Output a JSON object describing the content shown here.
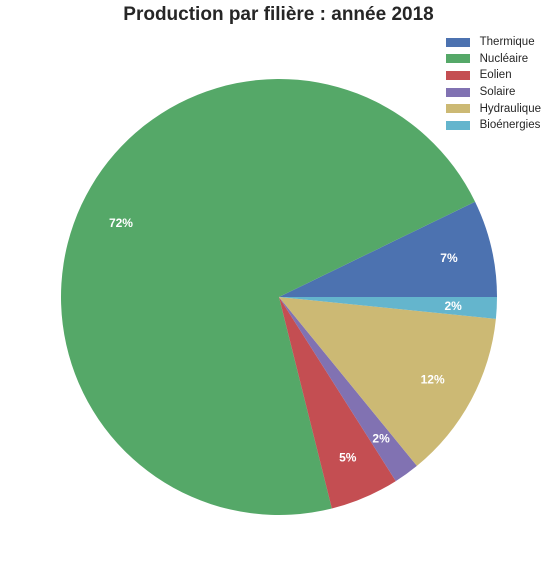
{
  "chart_data": {
    "type": "pie",
    "title": "Production par filière : année 2018",
    "labels": [
      "Thermique",
      "Nucléaire",
      "Eolien",
      "Solaire",
      "Hydraulique",
      "Bioénergies"
    ],
    "values": [
      7.2,
      71.7,
      5.1,
      1.9,
      12.5,
      1.6
    ],
    "value_labels": [
      "7%",
      "72%",
      "5%",
      "2%",
      "12%",
      "2%"
    ],
    "colors": [
      "#4c72b0",
      "#55a868",
      "#c44e52",
      "#8172b2",
      "#ccb974",
      "#64b5cd"
    ],
    "start_angle_deg": 0,
    "direction": "counterclockwise",
    "legend_position": "top-right"
  }
}
